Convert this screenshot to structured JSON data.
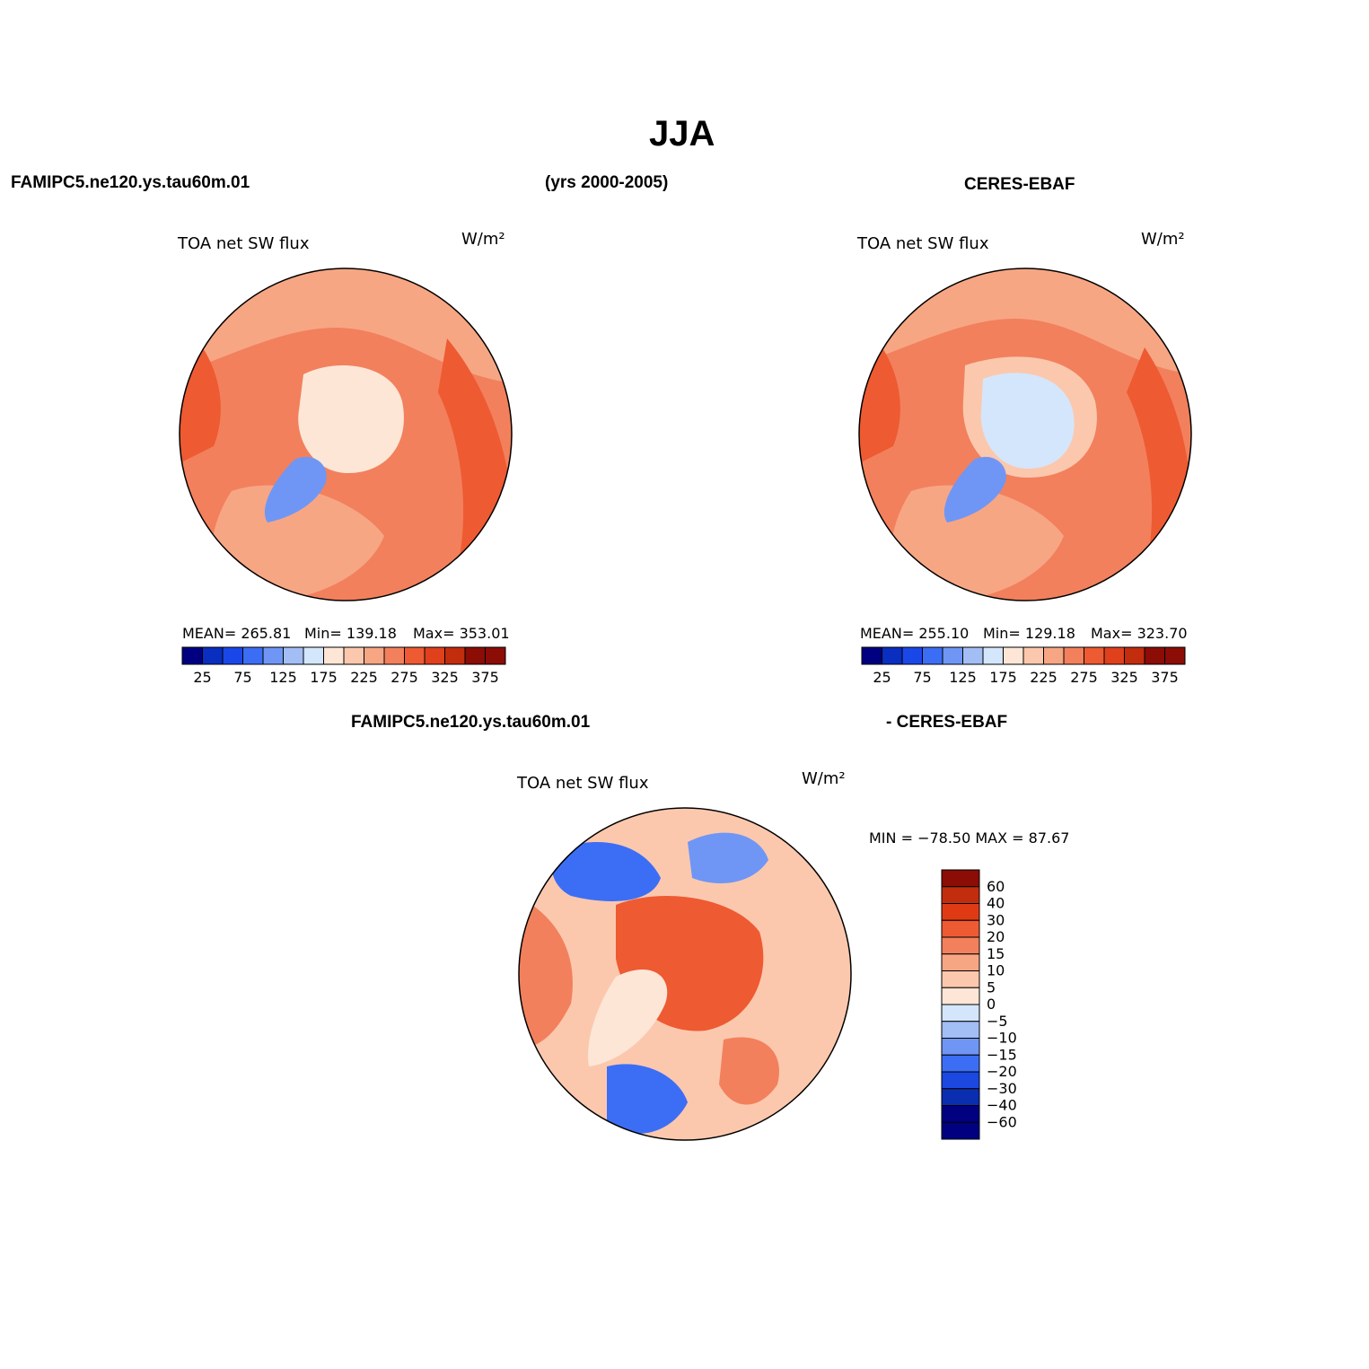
{
  "title": "JJA",
  "header": {
    "left": "FAMIPC5.ne120.ys.tau60m.01",
    "center": "(yrs 2000-2005)",
    "right": "CERES-EBAF",
    "diff_left": "FAMIPC5.ne120.ys.tau60m.01",
    "diff_right": "- CERES-EBAF"
  },
  "colors": {
    "abs_palette": [
      "#000080",
      "#0a2ec0",
      "#1a48e8",
      "#3c6ef5",
      "#6f96f5",
      "#a3bdf5",
      "#d4e6fb",
      "#fde6d6",
      "#fbc8ae",
      "#f7a684",
      "#f2805c",
      "#ee5a32",
      "#e0401c",
      "#c22d0e",
      "#8b0d06"
    ],
    "diff_palette": [
      "#000080",
      "#0a2eb0",
      "#1a48e0",
      "#3c6ef5",
      "#6f96f5",
      "#a3bdf5",
      "#d4e6fb",
      "#fde6d6",
      "#fbc8ae",
      "#f7a684",
      "#f2805c",
      "#ee5a32",
      "#e03a14",
      "#c22d0e",
      "#8b0d06"
    ]
  },
  "chart_data": [
    {
      "type": "heatmap",
      "panel": "model",
      "title": "TOA net SW flux",
      "units": "W/m²",
      "mean_label": "MEAN= 265.81",
      "min_label": "Min= 139.18",
      "max_label": "Max= 353.01",
      "mean": 265.81,
      "min": 139.18,
      "max": 353.01,
      "colorbar_levels": [
        25,
        50,
        75,
        100,
        125,
        150,
        175,
        200,
        225,
        250,
        275,
        300,
        325,
        350,
        375
      ],
      "colorbar_tick_labels": [
        "25",
        "75",
        "125",
        "175",
        "225",
        "275",
        "325",
        "375"
      ]
    },
    {
      "type": "heatmap",
      "panel": "observations",
      "title": "TOA net SW flux",
      "units": "W/m²",
      "mean_label": "MEAN= 255.10",
      "min_label": "Min= 129.18",
      "max_label": "Max= 323.70",
      "mean": 255.1,
      "min": 129.18,
      "max": 323.7,
      "colorbar_levels": [
        25,
        50,
        75,
        100,
        125,
        150,
        175,
        200,
        225,
        250,
        275,
        300,
        325,
        350,
        375
      ],
      "colorbar_tick_labels": [
        "25",
        "75",
        "125",
        "175",
        "225",
        "275",
        "325",
        "375"
      ]
    },
    {
      "type": "heatmap",
      "panel": "difference",
      "title": "TOA net SW flux",
      "units": "W/m²",
      "minmax_label": "MIN = −78.50 MAX =  87.67",
      "min": -78.5,
      "max": 87.67,
      "colorbar_levels": [
        60,
        40,
        30,
        20,
        15,
        10,
        5,
        0,
        -5,
        -10,
        -15,
        -20,
        -30,
        -40,
        -60
      ],
      "colorbar_tick_labels": [
        "60",
        "40",
        "30",
        "20",
        "15",
        "10",
        "5",
        "0",
        "−5",
        "−10",
        "−15",
        "−20",
        "−30",
        "−40",
        "−60"
      ]
    }
  ]
}
